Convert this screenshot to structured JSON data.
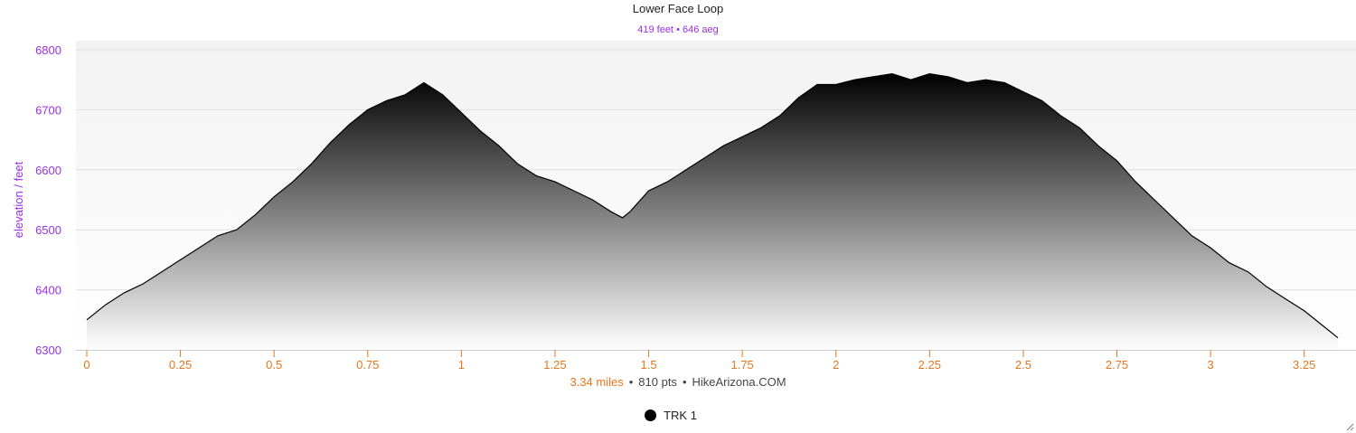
{
  "chart_data": {
    "type": "area",
    "title": "Lower Face Loop",
    "subtitle_parts": [
      "419 feet",
      "646 aeg"
    ],
    "ylabel": "elevation / feet",
    "xlabel_parts": [
      "3.34 miles",
      "810 pts",
      "HikeArizona.COM"
    ],
    "xlim": [
      0,
      3.34
    ],
    "ylim": [
      6300,
      6800
    ],
    "x_ticks": [
      "0",
      "0.25",
      "0.5",
      "0.75",
      "1",
      "1.25",
      "1.5",
      "1.75",
      "2",
      "2.25",
      "2.5",
      "2.75",
      "3",
      "3.25"
    ],
    "x_tick_values": [
      0,
      0.25,
      0.5,
      0.75,
      1,
      1.25,
      1.5,
      1.75,
      2,
      2.25,
      2.5,
      2.75,
      3,
      3.25
    ],
    "y_ticks": [
      "6300",
      "6400",
      "6500",
      "6600",
      "6700",
      "6800"
    ],
    "y_tick_values": [
      6300,
      6400,
      6500,
      6600,
      6700,
      6800
    ],
    "grid": true,
    "legend": "bottom-center",
    "series": [
      {
        "name": "TRK 1",
        "x": [
          0,
          0.05,
          0.1,
          0.15,
          0.2,
          0.25,
          0.3,
          0.35,
          0.4,
          0.45,
          0.5,
          0.55,
          0.6,
          0.65,
          0.7,
          0.75,
          0.8,
          0.85,
          0.9,
          0.95,
          1.0,
          1.05,
          1.1,
          1.15,
          1.2,
          1.25,
          1.3,
          1.35,
          1.4,
          1.43,
          1.45,
          1.5,
          1.55,
          1.6,
          1.65,
          1.7,
          1.75,
          1.8,
          1.85,
          1.9,
          1.95,
          2.0,
          2.05,
          2.1,
          2.15,
          2.2,
          2.25,
          2.3,
          2.35,
          2.4,
          2.45,
          2.5,
          2.55,
          2.6,
          2.65,
          2.7,
          2.75,
          2.8,
          2.85,
          2.9,
          2.95,
          3.0,
          3.05,
          3.1,
          3.15,
          3.2,
          3.25,
          3.3,
          3.34
        ],
        "values": [
          6350,
          6375,
          6395,
          6410,
          6430,
          6450,
          6470,
          6490,
          6500,
          6525,
          6555,
          6580,
          6610,
          6645,
          6675,
          6700,
          6715,
          6725,
          6745,
          6725,
          6695,
          6665,
          6640,
          6610,
          6590,
          6580,
          6565,
          6550,
          6530,
          6520,
          6530,
          6565,
          6580,
          6600,
          6620,
          6640,
          6655,
          6670,
          6690,
          6720,
          6742,
          6742,
          6750,
          6755,
          6760,
          6750,
          6760,
          6755,
          6745,
          6750,
          6745,
          6730,
          6715,
          6690,
          6670,
          6640,
          6615,
          6580,
          6550,
          6520,
          6490,
          6470,
          6445,
          6430,
          6405,
          6385,
          6365,
          6340,
          6320
        ]
      }
    ]
  },
  "colors": {
    "axis_label_purple": "#9b30e8",
    "x_axis_orange": "#e8761f",
    "fill_top": "#000000",
    "fill_bottom": "#ffffff",
    "grid": "#e0e0e0"
  },
  "legend_icon": "filled-circle-icon",
  "corner_icon": "resize-grip-icon"
}
